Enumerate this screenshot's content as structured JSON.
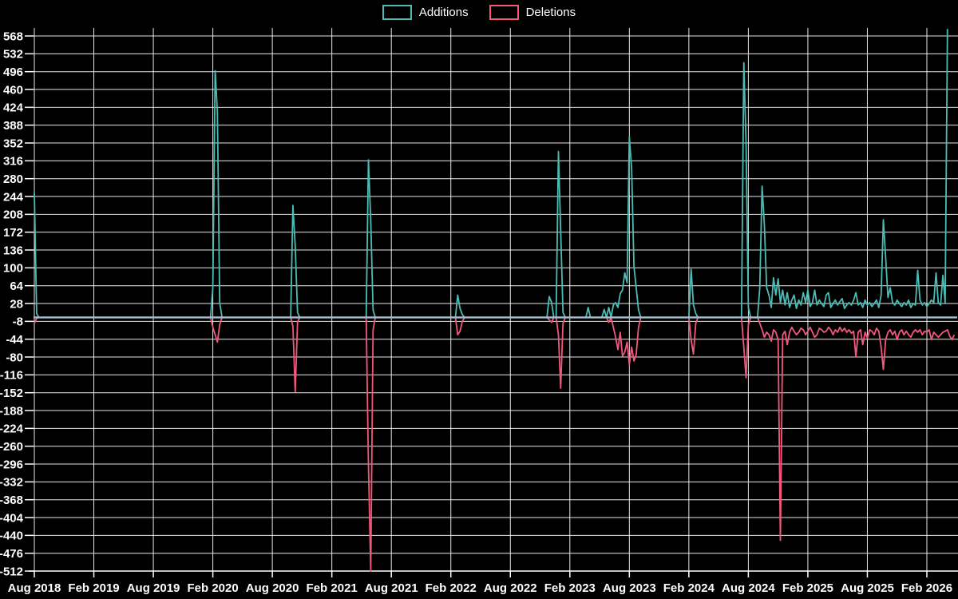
{
  "page": {
    "background": "#000000"
  },
  "chart_data": {
    "type": "line",
    "title": "",
    "legend": [
      {
        "label": "Additions",
        "color": "#4bbcb5"
      },
      {
        "label": "Deletions",
        "color": "#f2587d"
      }
    ],
    "style": {
      "background": "#000000",
      "grid_color": "#ffffff",
      "text_color": "#ffffff",
      "zero_line_color": "#a9bfce",
      "additions_color": "#4bbcb5",
      "deletions_color": "#f2587d"
    },
    "x_axis": {
      "tick_labels": [
        "Aug 2018",
        "Feb 2019",
        "Aug 2019",
        "Feb 2020",
        "Aug 2020",
        "Feb 2021",
        "Aug 2021",
        "Feb 2022",
        "Aug 2022",
        "Feb 2023",
        "Aug 2023",
        "Feb 2024",
        "Aug 2024",
        "Feb 2025",
        "Aug 2025",
        "Feb 2026"
      ],
      "weeks_between_ticks": 26
    },
    "y_axis": {
      "min": -512,
      "max": 568,
      "step": 36,
      "tick_labels": [
        "568",
        "532",
        "496",
        "460",
        "424",
        "388",
        "352",
        "316",
        "280",
        "244",
        "208",
        "172",
        "136",
        "100",
        "64",
        "28",
        "-8",
        "-44",
        "-80",
        "-116",
        "-152",
        "-188",
        "-224",
        "-260",
        "-296",
        "-332",
        "-368",
        "-404",
        "-440",
        "-476",
        "-512"
      ]
    },
    "series_sparse": {
      "weeks_total": 403,
      "default_additions": 0,
      "default_deletions": 0,
      "comment": "points = [weekIndex, additions, deletions]; weeks not listed are 0/0; null = series ends",
      "points": [
        [
          0,
          252,
          -12
        ],
        [
          1,
          8,
          -2
        ],
        [
          78,
          60,
          -20
        ],
        [
          79,
          498,
          -35
        ],
        [
          80,
          415,
          -50
        ],
        [
          81,
          30,
          -15
        ],
        [
          113,
          226,
          -18
        ],
        [
          114,
          144,
          -150
        ],
        [
          115,
          10,
          -10
        ],
        [
          146,
          318,
          -298
        ],
        [
          147,
          195,
          -512
        ],
        [
          148,
          15,
          -25
        ],
        [
          185,
          45,
          -35
        ],
        [
          186,
          18,
          -28
        ],
        [
          187,
          6,
          -8
        ],
        [
          225,
          42,
          -5
        ],
        [
          226,
          30,
          -10
        ],
        [
          229,
          335,
          -35
        ],
        [
          230,
          175,
          -143
        ],
        [
          231,
          10,
          -12
        ],
        [
          242,
          20,
          0
        ],
        [
          249,
          16,
          0
        ],
        [
          251,
          20,
          -10
        ],
        [
          253,
          25,
          -20
        ],
        [
          254,
          30,
          -40
        ],
        [
          255,
          20,
          -65
        ],
        [
          256,
          48,
          -30
        ],
        [
          257,
          55,
          -78
        ],
        [
          258,
          90,
          -70
        ],
        [
          259,
          70,
          -50
        ],
        [
          260,
          365,
          -95
        ],
        [
          261,
          300,
          -60
        ],
        [
          262,
          103,
          -88
        ],
        [
          263,
          60,
          -75
        ],
        [
          264,
          15,
          -20
        ],
        [
          287,
          97,
          -45
        ],
        [
          288,
          25,
          -74
        ],
        [
          289,
          8,
          -12
        ],
        [
          310,
          514,
          -60
        ],
        [
          311,
          353,
          -122
        ],
        [
          312,
          20,
          -15
        ],
        [
          317,
          60,
          -12
        ],
        [
          318,
          265,
          -25
        ],
        [
          319,
          185,
          -40
        ],
        [
          320,
          60,
          -30
        ],
        [
          321,
          45,
          -35
        ],
        [
          322,
          20,
          -48
        ],
        [
          323,
          80,
          -25
        ],
        [
          324,
          45,
          -30
        ],
        [
          325,
          78,
          -45
        ],
        [
          326,
          30,
          -450
        ],
        [
          327,
          55,
          -35
        ],
        [
          328,
          25,
          -28
        ],
        [
          329,
          50,
          -55
        ],
        [
          330,
          20,
          -30
        ],
        [
          331,
          35,
          -20
        ],
        [
          332,
          45,
          -28
        ],
        [
          333,
          18,
          -35
        ],
        [
          334,
          35,
          -30
        ],
        [
          335,
          25,
          -22
        ],
        [
          336,
          50,
          -25
        ],
        [
          337,
          30,
          -35
        ],
        [
          338,
          55,
          -28
        ],
        [
          339,
          22,
          -20
        ],
        [
          340,
          30,
          -30
        ],
        [
          341,
          55,
          -40
        ],
        [
          342,
          25,
          -35
        ],
        [
          343,
          35,
          -22
        ],
        [
          344,
          28,
          -25
        ],
        [
          345,
          22,
          -30
        ],
        [
          346,
          45,
          -28
        ],
        [
          347,
          50,
          -20
        ],
        [
          348,
          20,
          -25
        ],
        [
          349,
          28,
          -35
        ],
        [
          350,
          35,
          -25
        ],
        [
          351,
          25,
          -30
        ],
        [
          352,
          32,
          -20
        ],
        [
          353,
          38,
          -28
        ],
        [
          354,
          18,
          -22
        ],
        [
          355,
          25,
          -30
        ],
        [
          356,
          30,
          -25
        ],
        [
          357,
          25,
          -32
        ],
        [
          358,
          35,
          -28
        ],
        [
          359,
          50,
          -80
        ],
        [
          360,
          25,
          -30
        ],
        [
          361,
          30,
          -25
        ],
        [
          362,
          20,
          -55
        ],
        [
          363,
          35,
          -30
        ],
        [
          364,
          25,
          -42
        ],
        [
          365,
          30,
          -25
        ],
        [
          366,
          22,
          -28
        ],
        [
          367,
          28,
          -35
        ],
        [
          368,
          35,
          -22
        ],
        [
          369,
          20,
          -28
        ],
        [
          370,
          45,
          -60
        ],
        [
          371,
          197,
          -105
        ],
        [
          372,
          120,
          -45
        ],
        [
          373,
          40,
          -30
        ],
        [
          374,
          60,
          -25
        ],
        [
          375,
          30,
          -35
        ],
        [
          376,
          25,
          -28
        ],
        [
          377,
          35,
          -45
        ],
        [
          378,
          28,
          -30
        ],
        [
          379,
          22,
          -25
        ],
        [
          380,
          30,
          -35
        ],
        [
          381,
          25,
          -28
        ],
        [
          382,
          35,
          -35
        ],
        [
          383,
          20,
          -40
        ],
        [
          384,
          28,
          -30
        ],
        [
          385,
          25,
          -25
        ],
        [
          386,
          95,
          -30
        ],
        [
          387,
          35,
          -25
        ],
        [
          388,
          25,
          -35
        ],
        [
          389,
          30,
          -28
        ],
        [
          390,
          22,
          -30
        ],
        [
          391,
          28,
          -25
        ],
        [
          392,
          35,
          -45
        ],
        [
          393,
          30,
          -30
        ],
        [
          394,
          90,
          -35
        ],
        [
          395,
          30,
          -40
        ],
        [
          396,
          25,
          -35
        ],
        [
          397,
          85,
          -30
        ],
        [
          398,
          30,
          -28
        ],
        [
          399,
          582,
          -25
        ],
        [
          400,
          null,
          -38
        ],
        [
          401,
          null,
          -45
        ],
        [
          402,
          null,
          -35
        ]
      ]
    }
  }
}
